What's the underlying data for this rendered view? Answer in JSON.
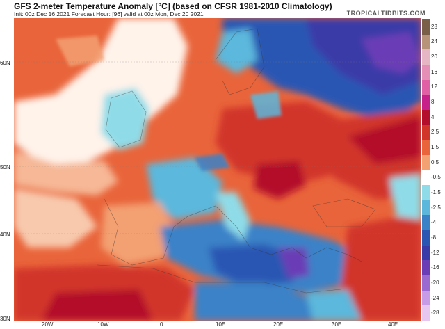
{
  "header": {
    "title": "GFS 2-meter Temperature Anomaly [°C] (based on CFSR 1981-2010 Climatology)",
    "subtitle": "Init: 00z Dec 16 2021   Forecast Hour: [96]   valid at 00z Mon, Dec 20 2021",
    "brand": "TROPICALTIDBITS.COM"
  },
  "colorbar": {
    "ticks": [
      "28",
      "24",
      "20",
      "16",
      "12",
      "8",
      "4",
      "2.5",
      "1.5",
      "0.5",
      "-0.5",
      "-1.5",
      "-2.5",
      "-4",
      "-8",
      "-12",
      "-16",
      "-20",
      "-24",
      "-28"
    ],
    "colors": [
      "#7a5e48",
      "#b7937a",
      "#e6b6c5",
      "#e68fb6",
      "#e05fa5",
      "#c8208a",
      "#b30f2c",
      "#d1352a",
      "#e9643a",
      "#f3a072",
      "#ffffff",
      "#8fdce8",
      "#5bb8dc",
      "#3a82c8",
      "#2b57b3",
      "#3a3aa8",
      "#6a3cb6",
      "#9b6ad0",
      "#c89be6",
      "#e7c6f0"
    ]
  },
  "axes": {
    "lat_labels": [
      "60N",
      "50N",
      "40N",
      "30N"
    ],
    "lon_labels": [
      "20W",
      "10W",
      "0",
      "10E",
      "20E",
      "30E",
      "40E"
    ]
  }
}
